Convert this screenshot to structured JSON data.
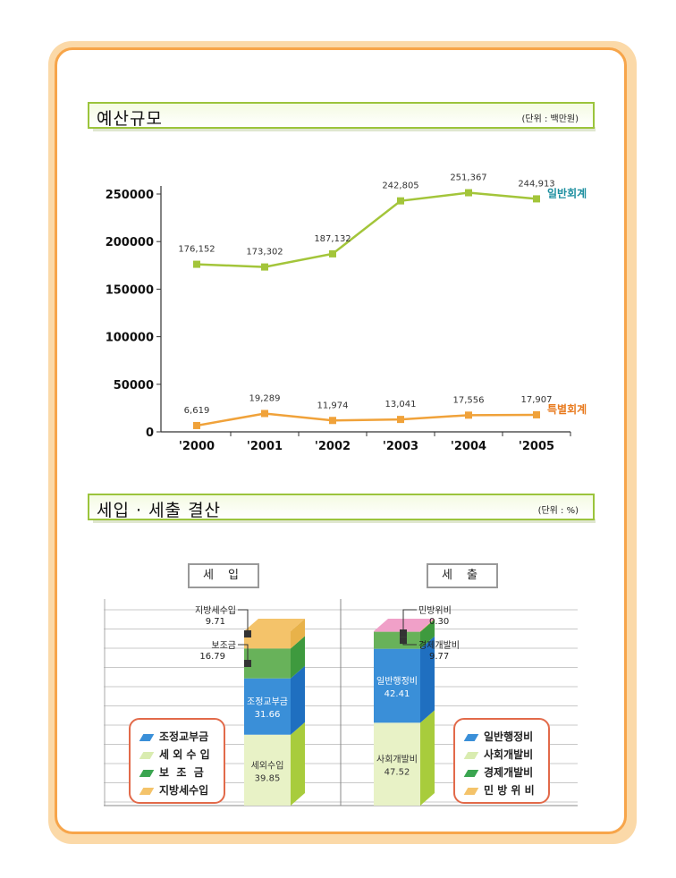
{
  "section1": {
    "title": "예산규모",
    "unit": "(단위 : 백만원)"
  },
  "section2": {
    "title": "세입 · 세출 결산",
    "unit": "(단위 : %)"
  },
  "colors": {
    "general": "#a3c53a",
    "special": "#f0a23a",
    "frame": "#f7a54a"
  },
  "chart_data": [
    {
      "type": "line",
      "title": "예산규모",
      "x": [
        "'2000",
        "'2001",
        "'2002",
        "'2003",
        "'2004",
        "'2005"
      ],
      "ylim": [
        0,
        265000
      ],
      "yticks": [
        0,
        50000,
        100000,
        150000,
        200000,
        250000
      ],
      "series": [
        {
          "name": "일반회계",
          "values": [
            176152,
            173302,
            187132,
            242805,
            251367,
            244913
          ],
          "labels": [
            "176,152",
            "173,302",
            "187,132",
            "242,805",
            "251,367",
            "244,913"
          ],
          "color": "#a3c53a"
        },
        {
          "name": "특별회계",
          "values": [
            6619,
            19289,
            11974,
            13041,
            17556,
            17907
          ],
          "labels": [
            "6,619",
            "19,289",
            "11,974",
            "13,041",
            "17,556",
            "17,907"
          ],
          "color": "#f0a23a"
        }
      ]
    },
    {
      "type": "bar",
      "stacked": true,
      "title": "세 입",
      "series": [
        {
          "name": "세외수입",
          "value": 39.85,
          "color": "#e8f2c6"
        },
        {
          "name": "조정교부금",
          "value": 31.66,
          "color": "#3a8fd8"
        },
        {
          "name": "보조금",
          "value": 16.79,
          "color": "#68b25a"
        },
        {
          "name": "지방세수입",
          "value": 9.71,
          "color": "#f4c36a"
        }
      ],
      "legend": [
        "조정교부금",
        "세 외 수 입",
        "보  조  금",
        "지방세수입"
      ]
    },
    {
      "type": "bar",
      "stacked": true,
      "title": "세 출",
      "series": [
        {
          "name": "사회개발비",
          "value": 47.52,
          "color": "#e8f2c6"
        },
        {
          "name": "일반행정비",
          "value": 42.41,
          "color": "#3a8fd8"
        },
        {
          "name": "경제개발비",
          "value": 9.77,
          "color": "#68b25a"
        },
        {
          "name": "민방위비",
          "value": 0.3,
          "color": "#f0a0c8"
        }
      ],
      "legend": [
        "일반행정비",
        "사회개발비",
        "경제개발비",
        "민 방 위 비"
      ]
    }
  ],
  "bar_labels": {
    "left": {
      "local_tax": "지방세수입",
      "local_tax_val": "9.71",
      "subsidy": "보조금",
      "subsidy_val": "16.79",
      "adjust": "조정교부금",
      "adjust_val": "31.66",
      "nontax": "세외수입",
      "nontax_val": "39.85"
    },
    "right": {
      "civil": "민방위비",
      "civil_val": "0.30",
      "econ": "경제개발비",
      "econ_val": "9.77",
      "general": "일반행정비",
      "general_val": "42.41",
      "social": "사회개발비",
      "social_val": "47.52"
    }
  }
}
